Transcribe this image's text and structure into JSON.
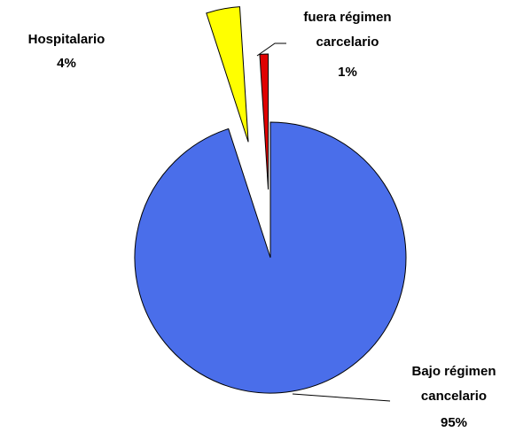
{
  "chart_data": {
    "type": "pie",
    "categories": [
      "Bajo régimen cancelario",
      "Hospitalario",
      "fuera régimen carcelario"
    ],
    "values": [
      95,
      4,
      1
    ],
    "value_labels": [
      "95%",
      "4%",
      "1%"
    ],
    "colors": [
      "#4a6eea",
      "#ffff00",
      "#e00000"
    ]
  }
}
